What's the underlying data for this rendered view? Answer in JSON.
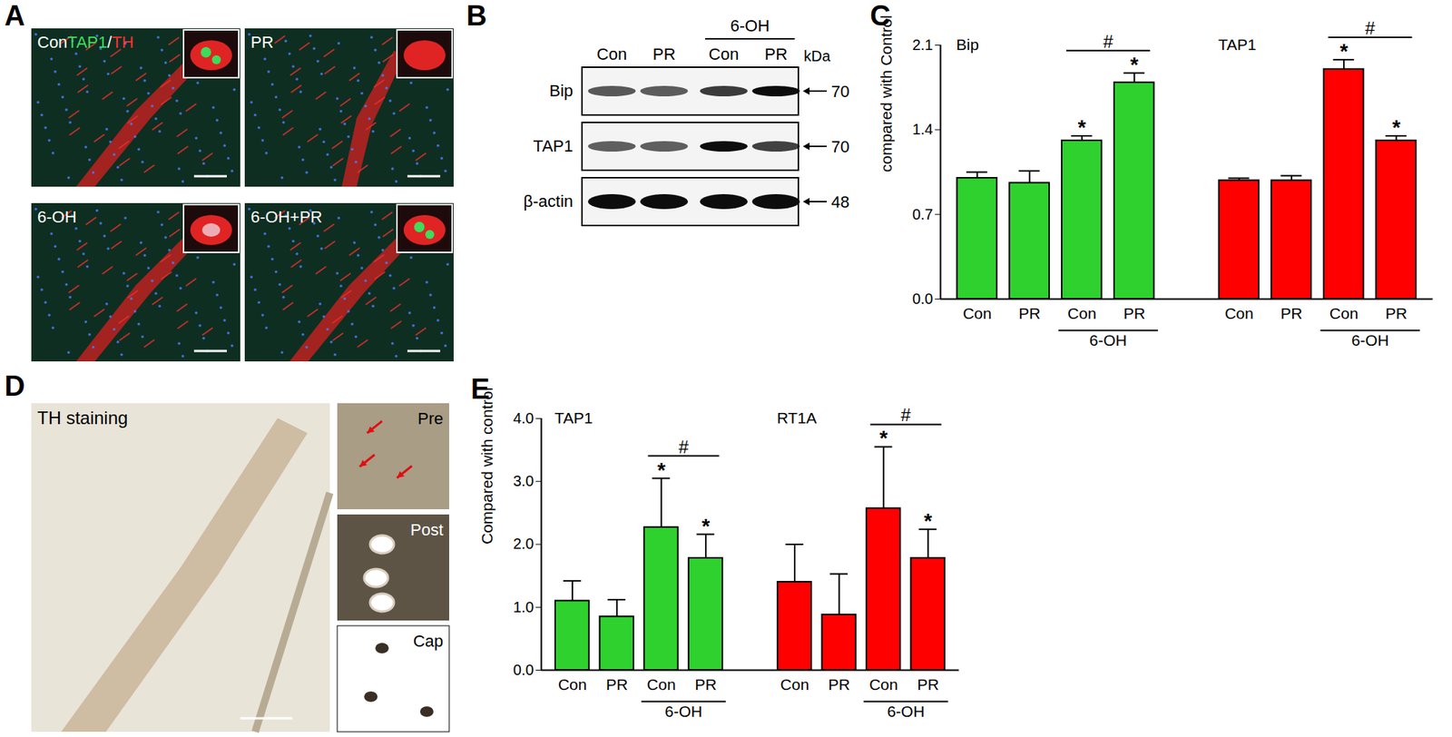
{
  "panel_A": {
    "label": "A",
    "images": [
      {
        "title": [
          {
            "text": "Con",
            "color": "#ffffff"
          },
          {
            "text": "TAP1",
            "color": "#3ddc5a"
          },
          {
            "text": "/",
            "color": "#ffffff"
          },
          {
            "text": "TH",
            "color": "#ff3030"
          }
        ]
      },
      {
        "title": [
          {
            "text": "PR",
            "color": "#ffffff"
          }
        ]
      },
      {
        "title": [
          {
            "text": "6-OH",
            "color": "#ffffff"
          }
        ]
      },
      {
        "title": [
          {
            "text": "6-OH+PR",
            "color": "#ffffff"
          }
        ]
      }
    ]
  },
  "panel_B": {
    "label": "B",
    "columns": [
      "Con",
      "PR",
      "Con",
      "PR"
    ],
    "column_group": {
      "label": "6-OH",
      "from": 2,
      "to": 3
    },
    "unit": "kDa",
    "rows": [
      {
        "name": "Bip",
        "mw": 70
      },
      {
        "name": "TAP1",
        "mw": 70
      },
      {
        "name": "β-actin",
        "mw": 48
      }
    ]
  },
  "panel_D": {
    "label": "D",
    "title": "TH staining",
    "insets": [
      "Pre",
      "Post",
      "Cap"
    ]
  },
  "chart_data": [
    {
      "type": "bar",
      "panel_label": "C",
      "y_label": "compared with Control",
      "categories": [
        "Con",
        "PR",
        "Con",
        "PR"
      ],
      "category_groups": [
        {
          "label": "6-OH",
          "from": 2,
          "to": 3
        }
      ],
      "ylim": [
        0,
        2.1
      ],
      "yticks": [
        {
          "value": 0,
          "label": "0.0"
        },
        {
          "value": 0.7,
          "label": "0.7"
        },
        {
          "value": 1.4,
          "label": "1.4"
        },
        {
          "value": 2.1,
          "label": "2.1"
        }
      ],
      "series": [
        {
          "name": "Bip",
          "color": "#2fd12f",
          "values": [
            1.0,
            0.96,
            1.31,
            1.79
          ],
          "error": [
            0.05,
            0.1,
            0.04,
            0.08
          ],
          "significance": [
            null,
            null,
            "*",
            "*"
          ],
          "comparisons": [
            {
              "from": 2,
              "to": 3,
              "label": "#"
            }
          ]
        },
        {
          "name": "TAP1",
          "color": "#ff0000",
          "values": [
            0.98,
            0.98,
            1.9,
            1.31
          ],
          "error": [
            0.02,
            0.04,
            0.08,
            0.04
          ],
          "significance": [
            null,
            null,
            "*",
            "*"
          ],
          "comparisons": [
            {
              "from": 2,
              "to": 3,
              "label": "#"
            }
          ]
        }
      ]
    },
    {
      "type": "bar",
      "panel_label": "E",
      "y_label": "Compared with control",
      "categories": [
        "Con",
        "PR",
        "Con",
        "PR"
      ],
      "category_groups": [
        {
          "label": "6-OH",
          "from": 2,
          "to": 3
        }
      ],
      "ylim": [
        0,
        4
      ],
      "yticks": [
        {
          "value": 0,
          "label": "0.0"
        },
        {
          "value": 1,
          "label": "1.0"
        },
        {
          "value": 2,
          "label": "2.0"
        },
        {
          "value": 3,
          "label": "3.0"
        },
        {
          "value": 4,
          "label": "4.0"
        }
      ],
      "series": [
        {
          "name": "TAP1",
          "color": "#2fd12f",
          "values": [
            1.1,
            0.85,
            2.27,
            1.78
          ],
          "error": [
            0.32,
            0.27,
            0.78,
            0.38
          ],
          "significance": [
            null,
            null,
            "*",
            "*"
          ],
          "comparisons": [
            {
              "from": 2,
              "to": 3,
              "label": "#"
            }
          ]
        },
        {
          "name": "RT1A",
          "color": "#ff0000",
          "values": [
            1.4,
            0.88,
            2.57,
            1.78
          ],
          "error": [
            0.6,
            0.65,
            0.98,
            0.46
          ],
          "significance": [
            null,
            null,
            "*",
            "*"
          ],
          "comparisons": [
            {
              "from": 2,
              "to": 3,
              "label": "#"
            }
          ]
        }
      ]
    }
  ]
}
